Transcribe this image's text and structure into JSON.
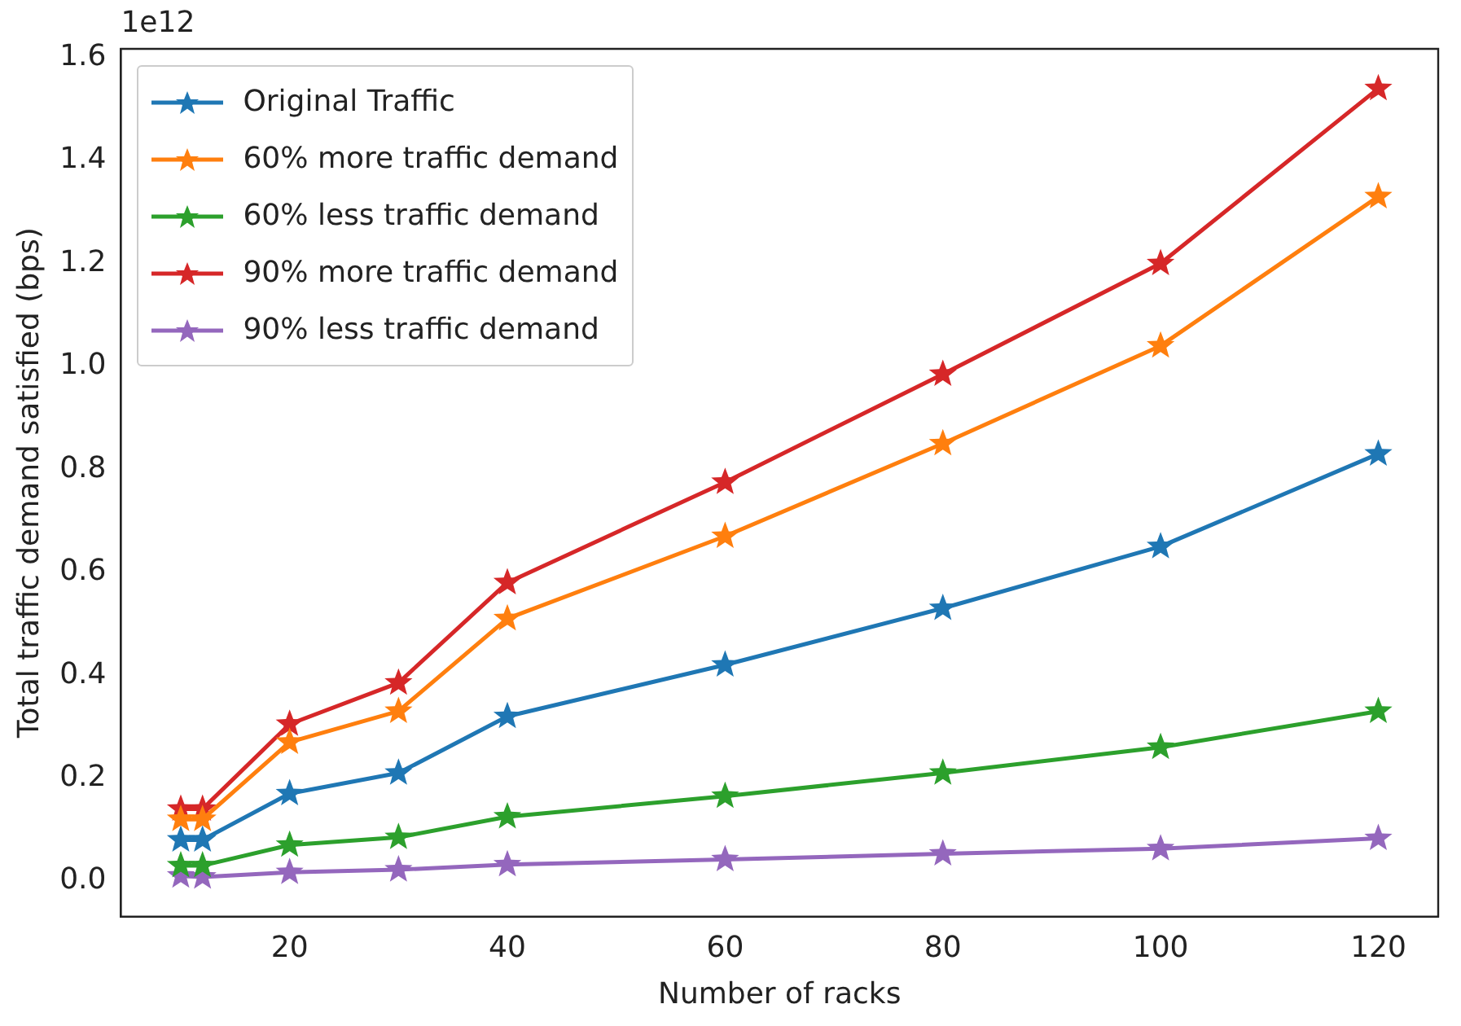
{
  "chart_data": {
    "type": "line",
    "xlabel": "Number of racks",
    "ylabel": "Total traffic demand satisfied (bps)",
    "annotations": [
      "1e12"
    ],
    "x": [
      10,
      12,
      20,
      30,
      40,
      60,
      80,
      100,
      120
    ],
    "series": [
      {
        "name": "Original Traffic",
        "color": "#1f77b4",
        "values": [
          0.08,
          0.08,
          0.17,
          0.21,
          0.32,
          0.42,
          0.53,
          0.65,
          0.83
        ]
      },
      {
        "name": "60% more traffic demand",
        "color": "#ff7f0e",
        "values": [
          0.12,
          0.12,
          0.27,
          0.33,
          0.51,
          0.67,
          0.85,
          1.04,
          1.33
        ]
      },
      {
        "name": "60% less traffic demand",
        "color": "#2ca02c",
        "values": [
          0.03,
          0.03,
          0.07,
          0.085,
          0.125,
          0.165,
          0.21,
          0.26,
          0.33
        ]
      },
      {
        "name": "90% more traffic demand",
        "color": "#d62728",
        "values": [
          0.14,
          0.14,
          0.305,
          0.385,
          0.58,
          0.775,
          0.985,
          1.2,
          1.54
        ]
      },
      {
        "name": "90% less traffic demand",
        "color": "#9467bd",
        "values": [
          0.01,
          0.008,
          0.017,
          0.022,
          0.032,
          0.042,
          0.053,
          0.063,
          0.083
        ]
      }
    ],
    "xlim": [
      4.5,
      125.5
    ],
    "xticks": [
      20,
      40,
      60,
      80,
      100,
      120
    ],
    "ylim": [
      -0.069,
      1.617
    ],
    "yticks": [
      {
        "value": 0,
        "label": "0.0"
      },
      {
        "value": 0.2,
        "label": "0.2"
      },
      {
        "value": 0.4,
        "label": "0.4"
      },
      {
        "value": 0.6,
        "label": "0.6"
      },
      {
        "value": 0.8,
        "label": "0.8"
      },
      {
        "value": 1.0,
        "label": "1.0"
      },
      {
        "value": 1.2,
        "label": "1.2"
      },
      {
        "value": 1.4,
        "label": "1.4"
      },
      {
        "value": 1.6,
        "label": "1.6"
      }
    ],
    "grid": false,
    "legend": "top left",
    "marker": "star",
    "line_style": "solid"
  }
}
